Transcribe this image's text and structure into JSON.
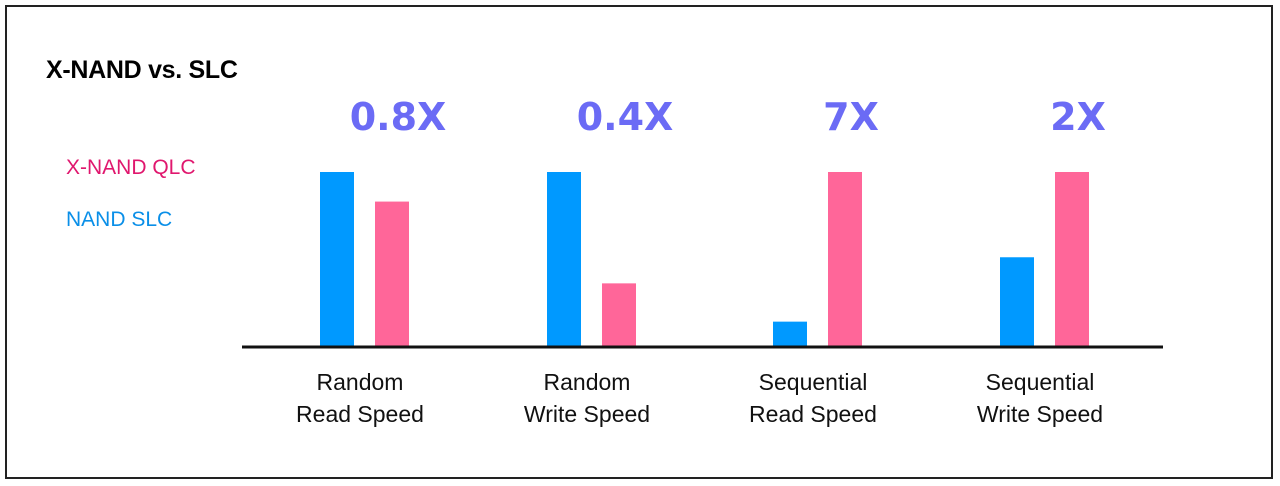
{
  "chart_data": {
    "type": "bar",
    "title": "X-NAND vs. SLC",
    "categories": [
      [
        "Random",
        "Read Speed"
      ],
      [
        "Random",
        "Write Speed"
      ],
      [
        "Sequential",
        "Read Speed"
      ],
      [
        "Sequential",
        "Write Speed"
      ]
    ],
    "series": [
      {
        "name": "NAND SLC",
        "color": "#0099ff",
        "values": [
          1.0,
          1.0,
          0.14,
          0.51
        ]
      },
      {
        "name": "X-NAND QLC",
        "color": "#ff6699",
        "values": [
          0.83,
          0.36,
          1.0,
          1.0
        ]
      }
    ],
    "annotations": [
      "0.8X",
      "0.4X",
      "7X",
      "2X"
    ],
    "annotation_color": "#6b6bf5",
    "ylim": [
      0,
      1
    ],
    "legend": "left"
  },
  "legend_colors": {
    "X-NAND QLC": "#e0176e",
    "NAND SLC": "#0a8fe8"
  }
}
